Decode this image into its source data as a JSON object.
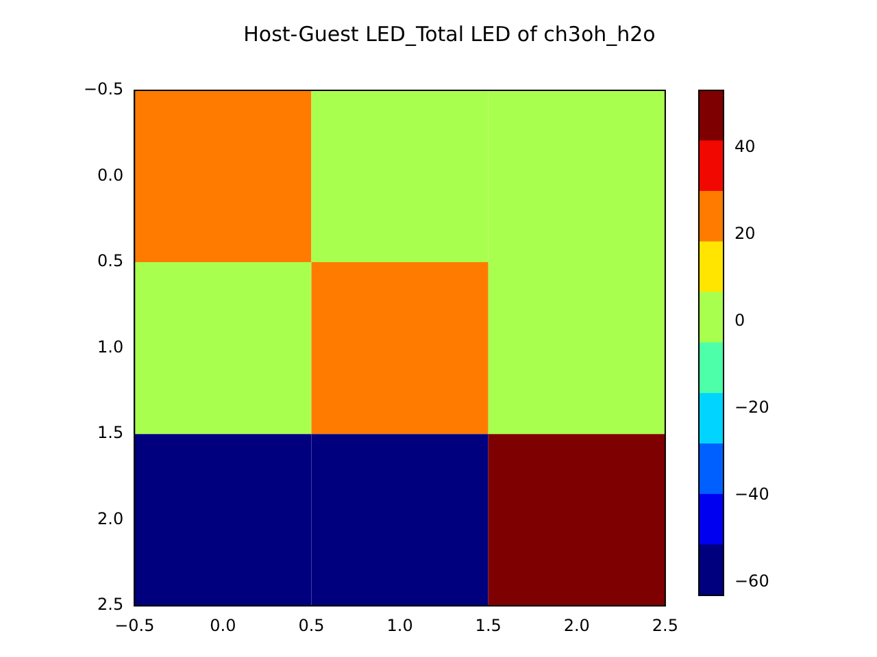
{
  "chart_data": {
    "type": "heatmap",
    "title": "Host-Guest LED_Total LED of ch3oh_h2o",
    "cells": [
      [
        25,
        3,
        3
      ],
      [
        3,
        25,
        3
      ],
      [
        -63.1,
        -63.1,
        53.2
      ]
    ],
    "xlim": [
      -0.5,
      2.5
    ],
    "xticks": [
      {
        "value": -0.5,
        "label": "−0.5"
      },
      {
        "value": 0,
        "label": "0.0"
      },
      {
        "value": 0.5,
        "label": "0.5"
      },
      {
        "value": 1,
        "label": "1.0"
      },
      {
        "value": 1.5,
        "label": "1.5"
      },
      {
        "value": 2,
        "label": "2.0"
      },
      {
        "value": 2.5,
        "label": "2.5"
      }
    ],
    "ylim": [
      2.5,
      -0.5
    ],
    "yticks": [
      {
        "value": -0.5,
        "label": "−0.5"
      },
      {
        "value": 0,
        "label": "0.0"
      },
      {
        "value": 0.5,
        "label": "0.5"
      },
      {
        "value": 1,
        "label": "1.0"
      },
      {
        "value": 1.5,
        "label": "1.5"
      },
      {
        "value": 2,
        "label": "2.0"
      },
      {
        "value": 2.5,
        "label": "2.5"
      }
    ],
    "clim": [
      -63.1,
      53.2
    ],
    "cticks": [
      {
        "value": -60,
        "label": "−60"
      },
      {
        "value": -40,
        "label": "−40"
      },
      {
        "value": -20,
        "label": "−20"
      },
      {
        "value": 0,
        "label": "0"
      },
      {
        "value": 20,
        "label": "20"
      },
      {
        "value": 40,
        "label": "40"
      }
    ]
  }
}
